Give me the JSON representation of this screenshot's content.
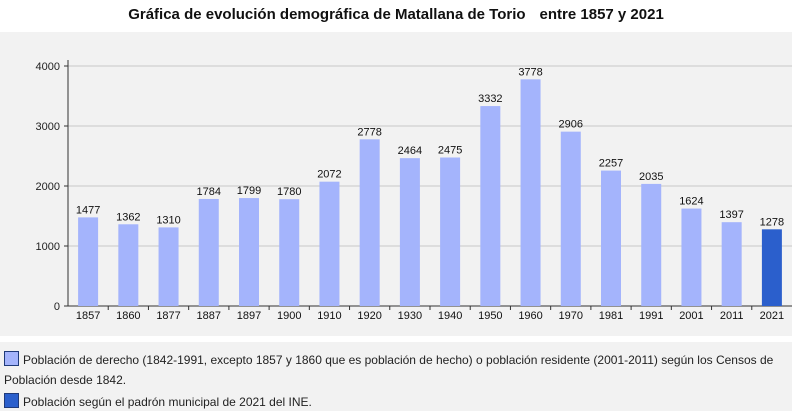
{
  "title": {
    "part1": "Gráfica de evolución demográfica de Matallana de Torio",
    "part2": "entre 1857 y 2021"
  },
  "legend": {
    "entries": [
      {
        "label": "Población de derecho (1842-1991, excepto 1857 y 1860 que es población de hecho) o población residente (2001-2011) según los Censos de Población desde 1842.",
        "color": "#a4b4fc"
      },
      {
        "label": "Población según el padrón municipal de 2021 del INE.",
        "color": "#2b5fcc"
      }
    ]
  },
  "chart_data": {
    "type": "bar",
    "categories": [
      "1857",
      "1860",
      "1877",
      "1887",
      "1897",
      "1900",
      "1910",
      "1920",
      "1930",
      "1940",
      "1950",
      "1960",
      "1970",
      "1981",
      "1991",
      "2001",
      "2011",
      "2021"
    ],
    "values": [
      1477,
      1362,
      1310,
      1784,
      1799,
      1780,
      2072,
      2778,
      2464,
      2475,
      3332,
      3778,
      2906,
      2257,
      2035,
      1624,
      1397,
      1278
    ],
    "data_labels": [
      "1477",
      "1362",
      "1310",
      "1784",
      "1799",
      "1780",
      "2072",
      "2778",
      "2464",
      "2475",
      "3332",
      "3778",
      "2906",
      "2257",
      "2035",
      "1624",
      "1397",
      "1278"
    ],
    "bar_colors": [
      "#a4b4fc",
      "#a4b4fc",
      "#a4b4fc",
      "#a4b4fc",
      "#a4b4fc",
      "#a4b4fc",
      "#a4b4fc",
      "#a4b4fc",
      "#a4b4fc",
      "#a4b4fc",
      "#a4b4fc",
      "#a4b4fc",
      "#a4b4fc",
      "#a4b4fc",
      "#a4b4fc",
      "#a4b4fc",
      "#a4b4fc",
      "#2b5fcc"
    ],
    "yticks": [
      "0",
      "1000",
      "2000",
      "3000",
      "4000"
    ],
    "ylim": [
      0,
      4000
    ],
    "grid": true
  }
}
